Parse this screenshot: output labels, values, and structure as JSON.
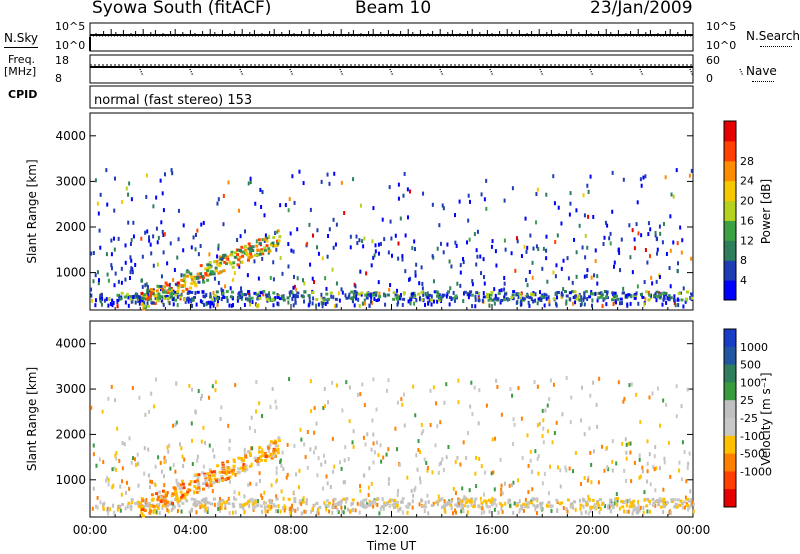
{
  "header": {
    "title": "Syowa South (fitACF)",
    "beam": "Beam 10",
    "date": "23/Jan/2009"
  },
  "strip_labels": {
    "nsky": "N.Sky",
    "nsearch": "N.Search",
    "freq_line1": "Freq.",
    "freq_line2": "[MHz]",
    "nave": "Nave",
    "cpid": "CPID",
    "cpid_text": "normal (fast stereo) 153",
    "noise_ticks_left": [
      "10^5",
      "10^0"
    ],
    "noise_ticks_right": [
      "10^5",
      "10^0"
    ],
    "freq_ticks": [
      "18",
      "8"
    ],
    "nave_ticks": [
      "60",
      "0"
    ]
  },
  "colors": {
    "power_scale": [
      "#0000ff",
      "#1e3cb4",
      "#2e7d5b",
      "#3ca045",
      "#b4d21e",
      "#f5c800",
      "#ff8c00",
      "#ff4000",
      "#e60000"
    ],
    "velocity_scale": [
      "#1a3dc8",
      "#2356a0",
      "#2e7d5b",
      "#3a9a40",
      "#c0c0c0",
      "#c8c8c8",
      "#ffc000",
      "#ff8000",
      "#ff4000",
      "#e60000"
    ]
  },
  "chart_data": [
    {
      "type": "heatmap",
      "title": "Power",
      "xlabel": "",
      "ylabel": "Slant Range [km]",
      "xlim": [
        0,
        24
      ],
      "ylim": [
        180,
        4500
      ],
      "yticks": [
        "1000",
        "2000",
        "3000",
        "4000"
      ],
      "colorbar": {
        "label": "Power [dB]",
        "ticks": [
          "4",
          "8",
          "12",
          "16",
          "20",
          "24",
          "28"
        ]
      }
    },
    {
      "type": "heatmap",
      "title": "Velocity",
      "xlabel": "Time UT",
      "ylabel": "Slant Range [km]",
      "xlim": [
        0,
        24
      ],
      "ylim": [
        180,
        4500
      ],
      "xticks": [
        "00:00",
        "04:00",
        "08:00",
        "12:00",
        "16:00",
        "20:00",
        "00:00"
      ],
      "yticks": [
        "1000",
        "2000",
        "3000",
        "4000"
      ],
      "colorbar": {
        "label": "Velocity [m s⁻¹]",
        "ticks": [
          "1000",
          "500",
          "100",
          "25",
          "-25",
          "-100",
          "-500",
          "-1000"
        ]
      }
    }
  ]
}
